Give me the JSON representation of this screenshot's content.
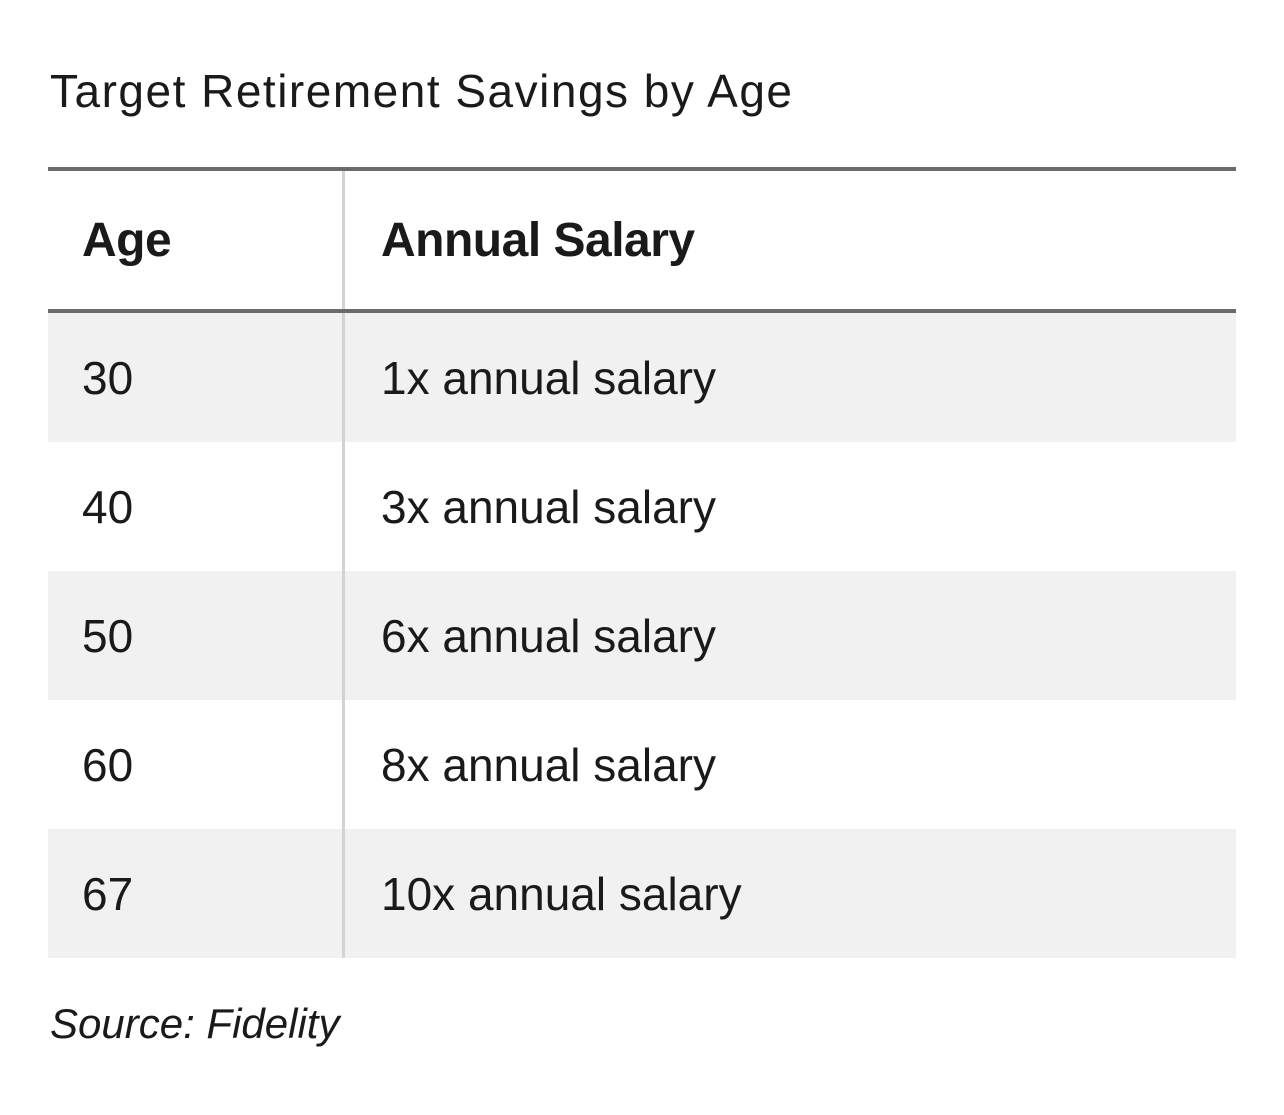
{
  "title": "Target Retirement Savings by Age",
  "table": {
    "headers": [
      "Age",
      "Annual Salary"
    ],
    "rows": [
      [
        "30",
        "1x annual salary"
      ],
      [
        "40",
        "3x annual salary"
      ],
      [
        "50",
        "6x annual salary"
      ],
      [
        "60",
        "8x annual salary"
      ],
      [
        "67",
        "10x annual salary"
      ]
    ]
  },
  "source": "Source: Fidelity",
  "colors": {
    "text": "#1a1a1a",
    "rule": "#6b6b6b",
    "stripe": "#f1f1f1",
    "divider": "#d3d3d3"
  }
}
